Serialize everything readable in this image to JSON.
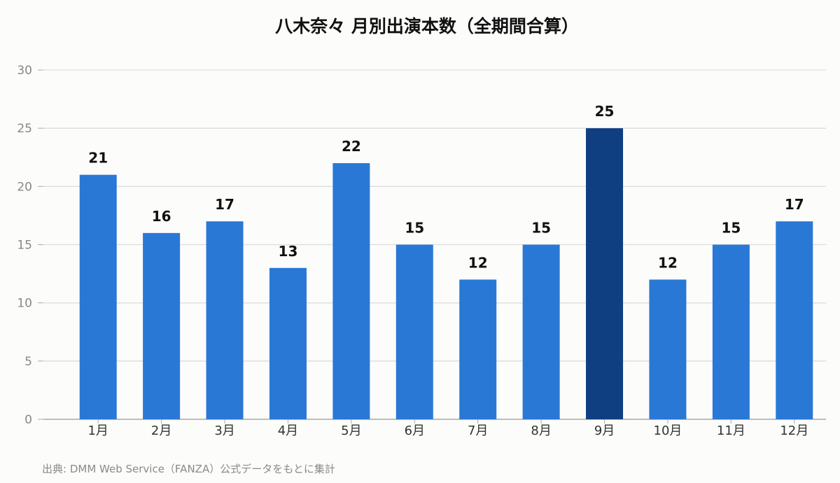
{
  "chart_data": {
    "type": "bar",
    "title": "八木奈々 月別出演本数（全期間合算）",
    "categories": [
      "1月",
      "2月",
      "3月",
      "4月",
      "5月",
      "6月",
      "7月",
      "8月",
      "9月",
      "10月",
      "11月",
      "12月"
    ],
    "values": [
      21,
      16,
      17,
      13,
      22,
      15,
      12,
      15,
      25,
      12,
      15,
      17
    ],
    "ylim": [
      0,
      30
    ],
    "yticks": [
      0,
      5,
      10,
      15,
      20,
      25,
      30
    ],
    "grid": true,
    "colors": {
      "bar": "#2a78d6",
      "highlight": "#0f3f80",
      "grid": "#dddddd",
      "axis": "#aaaaaa"
    },
    "highlight_index": 8,
    "source": "出典: DMM Web Service（FANZA）公式データをもとに集計"
  }
}
